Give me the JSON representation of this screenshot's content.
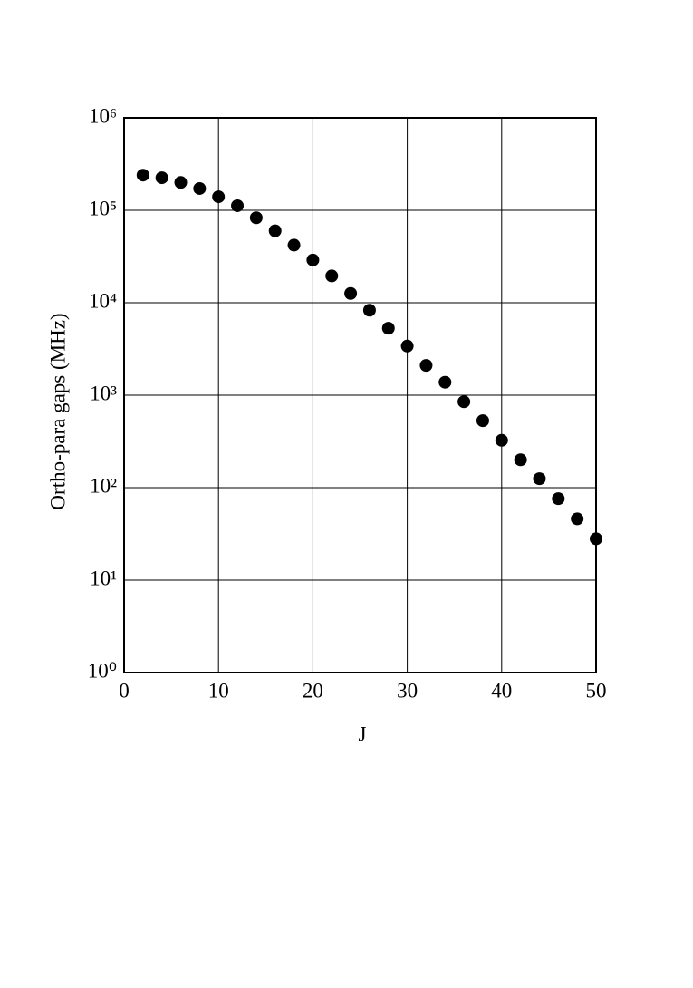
{
  "chart_data": {
    "type": "scatter",
    "x_label": "J",
    "y_label": "Ortho-para gaps (MHz)",
    "log_y": true,
    "grid": true,
    "color": "#000000",
    "x": [
      2,
      4,
      6,
      8,
      10,
      12,
      14,
      16,
      18,
      20,
      22,
      24,
      26,
      28,
      30,
      32,
      34,
      36,
      38,
      40,
      42,
      44,
      46,
      48,
      50
    ],
    "values": [
      240000,
      225000,
      200000,
      172000,
      140000,
      112000,
      83000,
      60000,
      42000,
      29000,
      19500,
      12600,
      8300,
      5300,
      3400,
      2100,
      1380,
      850,
      530,
      325,
      200,
      125,
      76,
      46,
      28
    ],
    "xlim": [
      0,
      50
    ],
    "xticks": [
      0,
      10,
      20,
      30,
      40,
      50
    ],
    "ylim": [
      1,
      1000000
    ],
    "yticks": [
      {
        "value": 1,
        "label": "10⁰"
      },
      {
        "value": 10,
        "label": "10¹"
      },
      {
        "value": 100,
        "label": "10²"
      },
      {
        "value": 1000,
        "label": "10³"
      },
      {
        "value": 10000,
        "label": "10⁴"
      },
      {
        "value": 100000,
        "label": "10⁵"
      },
      {
        "value": 1000000,
        "label": "10⁶"
      }
    ]
  }
}
